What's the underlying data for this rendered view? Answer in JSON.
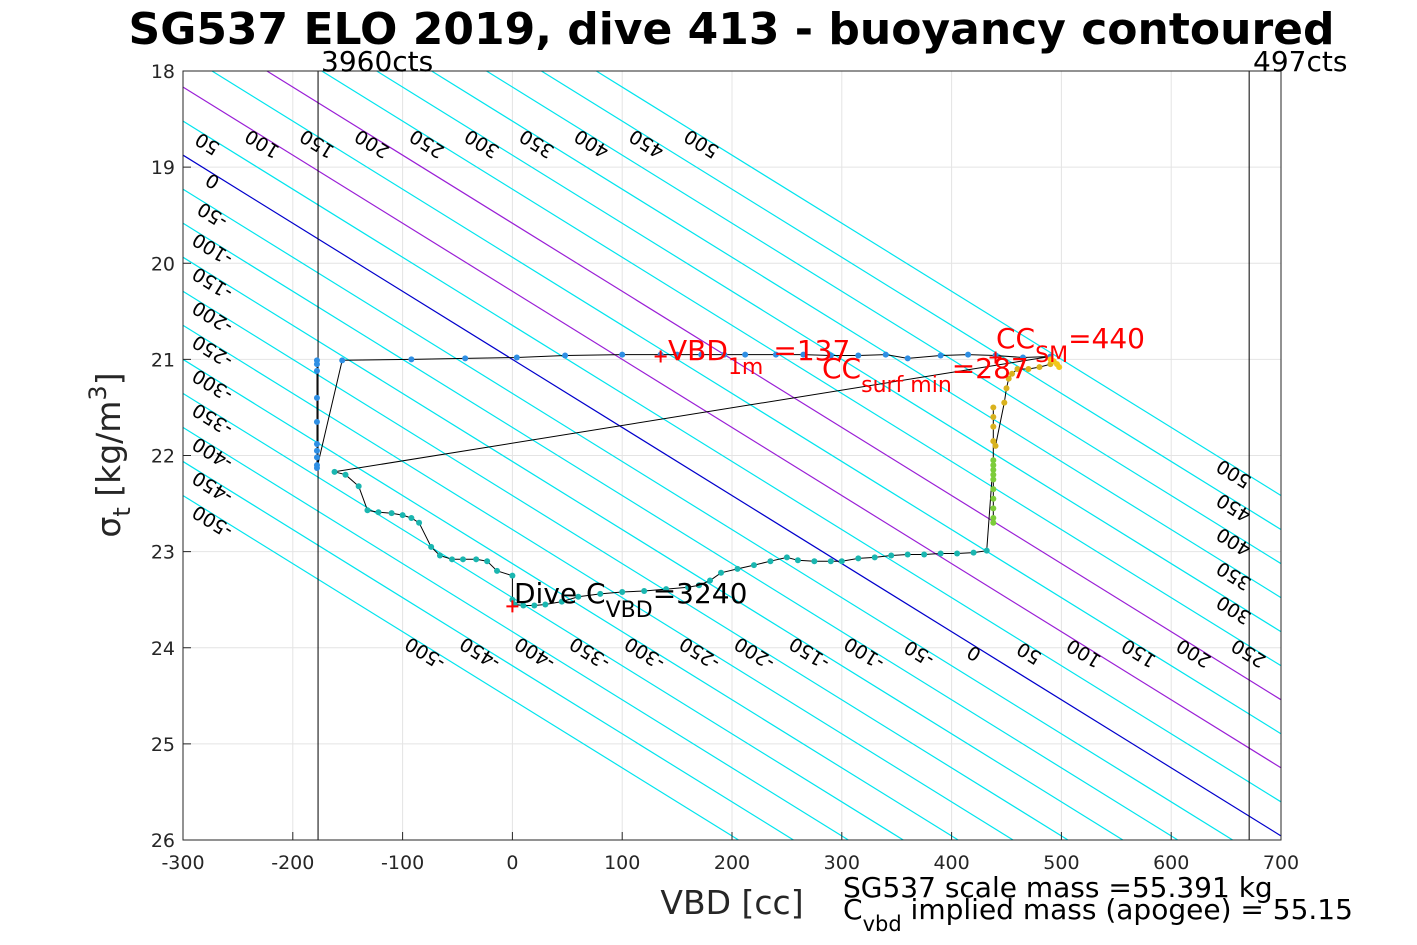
{
  "title": "SG537 ELO 2019, dive 413 - buoyancy contoured",
  "xlabel": "VBD [cc]",
  "ylabel": "σ",
  "ylabel_sub": "t",
  "ylabel_units": "[kg/m",
  "ylabel_units_sup": "3",
  "ylabel_units_close": "]",
  "top_left_label": "3960cts",
  "top_right_label": "497cts",
  "notes": {
    "line1": "SG537 scale mass =55.391 kg",
    "line2_pre": "C",
    "line2_sub": "vbd",
    "line2_post": " implied mass (apogee) = 55.15"
  },
  "annotations": {
    "vbd_1m": {
      "main": "VBD",
      "sub": "1m",
      "value": "=137"
    },
    "cc_surf_min": {
      "main": "CC",
      "sub": "surf min",
      "value": "=287"
    },
    "cc_sm": {
      "main": "CC",
      "sub": "SM",
      "value": "=440"
    },
    "dive_cvbd": {
      "main": "Dive C",
      "sub": "VBD",
      "value": "=3240"
    }
  },
  "chart_data": {
    "type": "scatter",
    "xlim": [
      -300,
      700
    ],
    "ylim": [
      18,
      26
    ],
    "y_reversed": true,
    "grid": true,
    "x_ticks": [
      -300,
      -200,
      -100,
      0,
      100,
      200,
      300,
      400,
      500,
      600,
      700
    ],
    "y_ticks": [
      18,
      19,
      20,
      21,
      22,
      23,
      24,
      25,
      26
    ],
    "vertical_lines": [
      {
        "x": -177,
        "label": "3960cts"
      },
      {
        "x": 671,
        "label": "497cts"
      }
    ],
    "contour_slope_cc_per_sigma": 141.2,
    "contour_levels": [
      -500,
      -450,
      -400,
      -350,
      -300,
      -250,
      -200,
      -150,
      -100,
      -50,
      0,
      50,
      100,
      150,
      200,
      250,
      300,
      350,
      400,
      450,
      500
    ],
    "contour_colors": {
      "default": "#00e5ee",
      "zero": "#0000cc",
      "highlight": "#9a1fd6"
    },
    "highlight_levels": [
      100,
      200
    ],
    "series": [
      {
        "x": [
          -178,
          -178,
          -178,
          -178,
          -178,
          -178,
          -178,
          -178,
          -178,
          -178,
          -155,
          -92,
          -43,
          4,
          48,
          100,
          135,
          150,
          172,
          193,
          212,
          240,
          265,
          290,
          315,
          340,
          360,
          390,
          415,
          440,
          465,
          490
        ],
        "y": [
          21.01,
          21.05,
          21.12,
          21.4,
          21.65,
          21.88,
          21.95,
          22.02,
          22.1,
          22.13,
          21.01,
          21.0,
          20.99,
          20.98,
          20.96,
          20.95,
          20.95,
          20.95,
          20.95,
          20.95,
          20.95,
          20.95,
          20.95,
          20.96,
          20.96,
          20.95,
          20.99,
          20.96,
          20.95,
          20.96,
          20.98,
          20.97
        ],
        "color": "#2f8fe4"
      },
      {
        "x": [
          -162,
          -152,
          -140,
          -132,
          -122,
          -110,
          -100,
          -92,
          -85,
          -74,
          -66,
          -55,
          -45,
          -33,
          -23,
          -14,
          0,
          0,
          2,
          10,
          20,
          30,
          45,
          60,
          80,
          100,
          120,
          140,
          160,
          170,
          180,
          190,
          205,
          220,
          235,
          250,
          260,
          275,
          290,
          300,
          315,
          330,
          345,
          360,
          375,
          390,
          405,
          420,
          432
        ],
        "y": [
          22.17,
          22.2,
          22.32,
          22.57,
          22.59,
          22.6,
          22.62,
          22.65,
          22.7,
          22.95,
          23.04,
          23.08,
          23.08,
          23.08,
          23.1,
          23.2,
          23.25,
          23.5,
          23.55,
          23.56,
          23.56,
          23.55,
          23.52,
          23.47,
          23.44,
          23.42,
          23.41,
          23.39,
          23.37,
          23.35,
          23.3,
          23.22,
          23.18,
          23.14,
          23.1,
          23.06,
          23.09,
          23.1,
          23.1,
          23.1,
          23.07,
          23.06,
          23.04,
          23.03,
          23.03,
          23.02,
          23.02,
          23.01,
          22.99
        ],
        "color": "#1ab6b0"
      },
      {
        "x": [
          438,
          438,
          438,
          438,
          438,
          438,
          438,
          438,
          438,
          438
        ],
        "y": [
          22.05,
          22.1,
          22.15,
          22.2,
          22.25,
          22.35,
          22.45,
          22.55,
          22.65,
          22.7
        ],
        "color": "#7ccc3a"
      },
      {
        "x": [
          438,
          438,
          438,
          438,
          440,
          448,
          450,
          452,
          455,
          460,
          470,
          480,
          490
        ],
        "y": [
          21.5,
          21.6,
          21.7,
          21.85,
          21.9,
          21.45,
          21.3,
          21.2,
          21.15,
          21.1,
          21.1,
          21.08,
          21.05
        ],
        "color": "#d9b21e"
      },
      {
        "x": [
          490,
          493,
          496,
          498
        ],
        "y": [
          21.0,
          21.02,
          21.05,
          21.08
        ],
        "color": "#f2c81a"
      }
    ],
    "markers": [
      {
        "x": 135,
        "y": 20.97,
        "label": "VBD_1m=137"
      },
      {
        "x": 0,
        "y": 23.57,
        "label": "Dive C_VBD=3240"
      },
      {
        "x": 440,
        "y": 20.98,
        "label": "CC_SM=440"
      }
    ]
  }
}
